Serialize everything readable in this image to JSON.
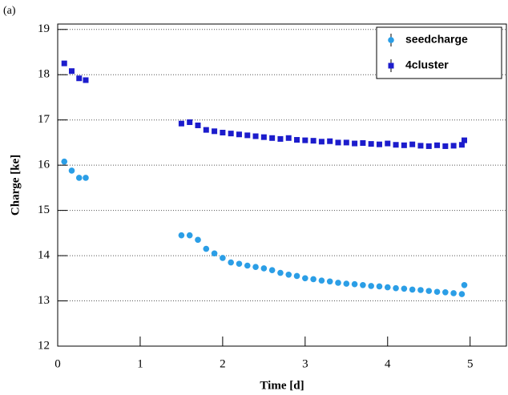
{
  "chart_data": {
    "type": "scatter",
    "panel_label": "(a)",
    "x_label": "Time [d]",
    "y_label": "Charge [ke]",
    "xlim": [
      0,
      5.44
    ],
    "ylim": [
      12,
      19.12
    ],
    "xticks": [
      0,
      1,
      2,
      3,
      4,
      5
    ],
    "yticks": [
      12,
      13,
      14,
      15,
      16,
      17,
      18,
      19
    ],
    "grid": true,
    "legend": "top-right",
    "x": [
      0.08,
      0.17,
      0.26,
      0.34,
      1.5,
      1.6,
      1.7,
      1.8,
      1.9,
      2.0,
      2.1,
      2.2,
      2.3,
      2.4,
      2.5,
      2.6,
      2.7,
      2.8,
      2.9,
      3.0,
      3.1,
      3.2,
      3.3,
      3.4,
      3.5,
      3.6,
      3.7,
      3.8,
      3.9,
      4.0,
      4.1,
      4.2,
      4.3,
      4.4,
      4.5,
      4.6,
      4.7,
      4.8,
      4.9,
      4.93
    ],
    "series": [
      {
        "name": "seedcharge",
        "color": "#2b9ee6",
        "marker": "circle",
        "values": [
          16.08,
          15.88,
          15.72,
          15.72,
          14.45,
          14.45,
          14.35,
          14.15,
          14.05,
          13.95,
          13.85,
          13.82,
          13.78,
          13.75,
          13.72,
          13.68,
          13.62,
          13.58,
          13.55,
          13.5,
          13.48,
          13.45,
          13.43,
          13.4,
          13.38,
          13.37,
          13.35,
          13.33,
          13.32,
          13.3,
          13.28,
          13.27,
          13.25,
          13.24,
          13.22,
          13.2,
          13.19,
          13.17,
          13.15,
          13.35
        ]
      },
      {
        "name": "4cluster",
        "color": "#1c1ccc",
        "marker": "square",
        "values": [
          18.25,
          18.08,
          17.92,
          17.88,
          16.92,
          16.95,
          16.88,
          16.78,
          16.75,
          16.72,
          16.7,
          16.68,
          16.66,
          16.64,
          16.62,
          16.6,
          16.58,
          16.6,
          16.56,
          16.55,
          16.54,
          16.52,
          16.53,
          16.5,
          16.5,
          16.48,
          16.49,
          16.47,
          16.46,
          16.48,
          16.45,
          16.44,
          16.46,
          16.43,
          16.42,
          16.44,
          16.42,
          16.43,
          16.45,
          16.55
        ]
      }
    ]
  }
}
